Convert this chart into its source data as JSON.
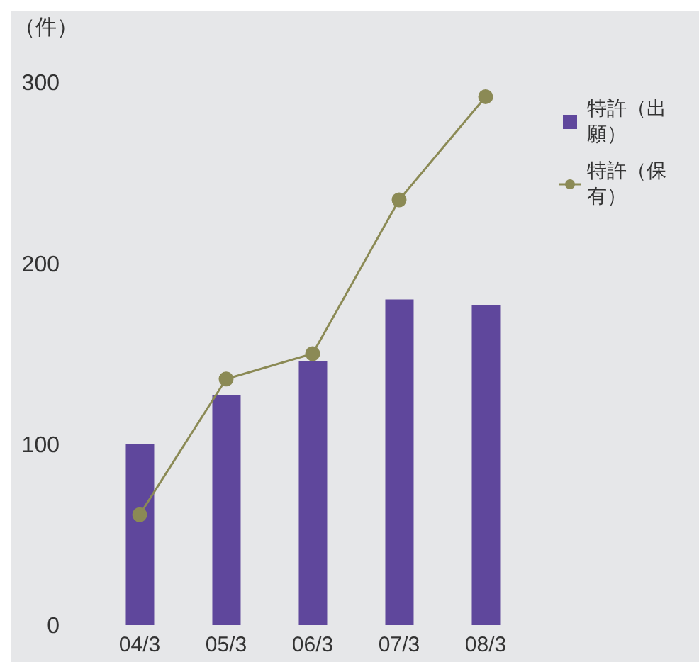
{
  "chart_data": {
    "type": "bar",
    "ylabel": "（件）",
    "categories": [
      "04/3",
      "05/3",
      "06/3",
      "07/3",
      "08/3"
    ],
    "series": [
      {
        "name": "特許（出願）",
        "color": "#5f479c",
        "values": [
          100,
          127,
          146,
          180,
          177
        ]
      },
      {
        "name": "特許（保有）",
        "type": "line",
        "color": "#8b8a55",
        "values": [
          61,
          136,
          150,
          235,
          292
        ]
      }
    ],
    "ylim": [
      0,
      300
    ],
    "yticks": [
      0,
      100,
      200,
      300
    ],
    "grid": false,
    "legend": "top right",
    "marker": "circle"
  }
}
